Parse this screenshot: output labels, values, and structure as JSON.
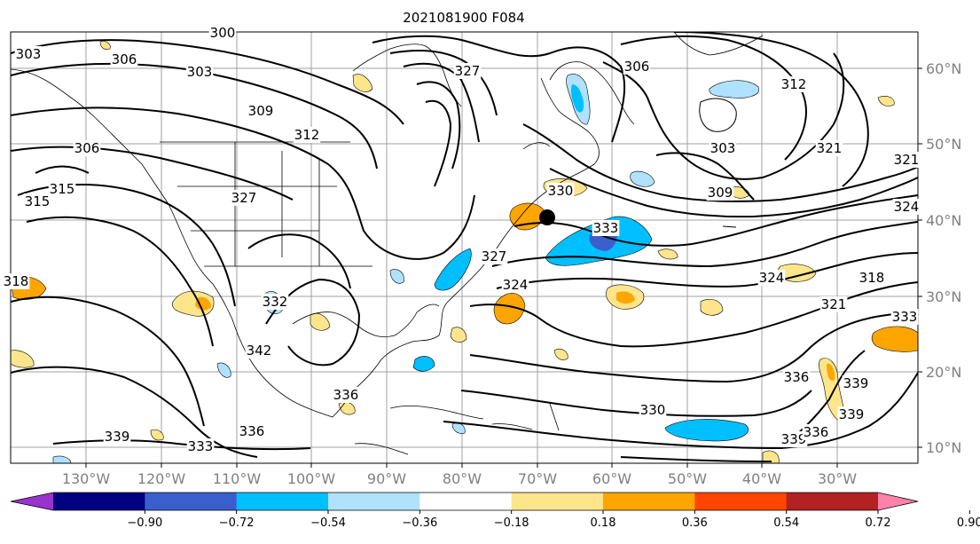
{
  "title": "2021081900 F084",
  "lon_ticks": [
    "130°W",
    "120°W",
    "110°W",
    "100°W",
    "90°W",
    "80°W",
    "70°W",
    "60°W",
    "50°W",
    "40°W",
    "30°W"
  ],
  "lat_ticks": [
    "60°N",
    "50°N",
    "40°N",
    "30°N",
    "20°N",
    "10°N"
  ],
  "colorbar": {
    "labels": [
      "−0.90",
      "−0.72",
      "−0.54",
      "−0.36",
      "−0.18",
      "0.18",
      "0.36",
      "0.54",
      "0.72",
      "0.90"
    ],
    "colors": [
      "#9a32cd",
      "#000080",
      "#3a5fcd",
      "#00bfff",
      "#b0e2ff",
      "#ffffff",
      "#fde58b",
      "#ffa500",
      "#ff4500",
      "#b22222",
      "#ff82ab"
    ]
  },
  "contour_labels": [
    "300",
    "303",
    "306",
    "303",
    "309",
    "312",
    "306",
    "315",
    "315",
    "318",
    "327",
    "327",
    "306",
    "312",
    "321",
    "303",
    "309",
    "321",
    "324",
    "330",
    "333",
    "327",
    "324",
    "318",
    "324",
    "321",
    "333",
    "332",
    "342",
    "336",
    "330",
    "339",
    "336",
    "339",
    "339",
    "333",
    "336",
    "339",
    "336"
  ],
  "symbols": {
    "marker": "black-dot"
  }
}
